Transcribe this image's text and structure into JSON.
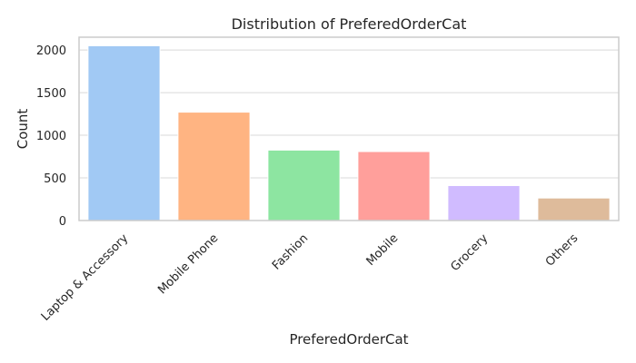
{
  "chart_data": {
    "type": "bar",
    "title": "Distribution of PreferedOrderCat",
    "xlabel": "PreferedOrderCat",
    "ylabel": "Count",
    "categories": [
      "Laptop & Accessory",
      "Mobile Phone",
      "Fashion",
      "Mobile",
      "Grocery",
      "Others"
    ],
    "values": [
      2050,
      1271,
      826,
      809,
      410,
      264
    ],
    "colors": [
      "#a1c9f4",
      "#ffb482",
      "#8de5a1",
      "#ff9f9b",
      "#d0bbff",
      "#debb9b"
    ],
    "ylim": [
      0,
      2150
    ],
    "yticks": [
      0,
      500,
      1000,
      1500,
      2000
    ],
    "grid": "horizontal",
    "legend": "none"
  }
}
